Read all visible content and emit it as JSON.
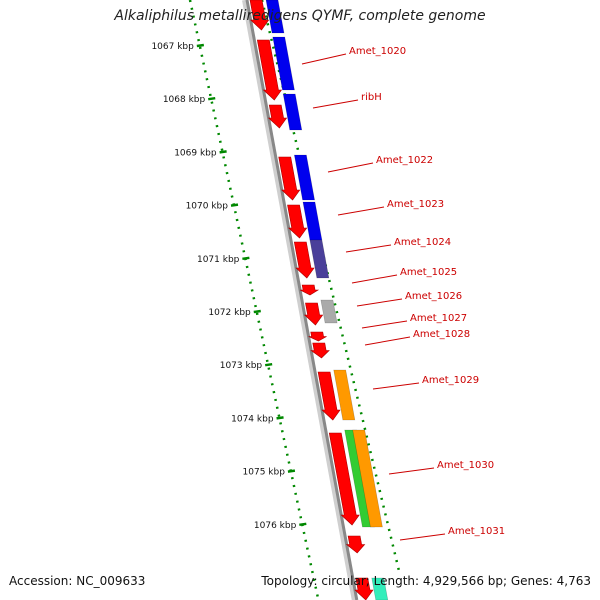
{
  "title": "Alkaliphilus metalliredigens QYMF, complete genome",
  "accession_text": "Accession: NC_009633",
  "topology_text": "Topology: circular; Length: 4,929,566 bp; Genes: 4,763",
  "colors": {
    "gene": "#ff0000",
    "cds_blue": "#0000ee",
    "cds_darkslate": "#4a3f9a",
    "cds_gray": "#aaaaaa",
    "cds_orange": "#ff9900",
    "cds_green": "#33cc33",
    "cds_teal": "#33eebb",
    "backbone": "#888888",
    "ruler": "#008800",
    "label": "#cc0000"
  },
  "ruler_ticks": [
    {
      "label": "1067 kbp"
    },
    {
      "label": "1068 kbp"
    },
    {
      "label": "1069 kbp"
    },
    {
      "label": "1070 kbp"
    },
    {
      "label": "1071 kbp"
    },
    {
      "label": "1072 kbp"
    },
    {
      "label": "1073 kbp"
    },
    {
      "label": "1074 kbp"
    },
    {
      "label": "1075 kbp"
    },
    {
      "label": "1076 kbp"
    }
  ],
  "gene_labels": [
    {
      "name": "Amet_1020"
    },
    {
      "name": "ribH"
    },
    {
      "name": "Amet_1022"
    },
    {
      "name": "Amet_1023"
    },
    {
      "name": "Amet_1024"
    },
    {
      "name": "Amet_1025"
    },
    {
      "name": "Amet_1026"
    },
    {
      "name": "Amet_1027"
    },
    {
      "name": "Amet_1028"
    },
    {
      "name": "Amet_1029"
    },
    {
      "name": "Amet_1030"
    },
    {
      "name": "Amet_1031"
    }
  ]
}
